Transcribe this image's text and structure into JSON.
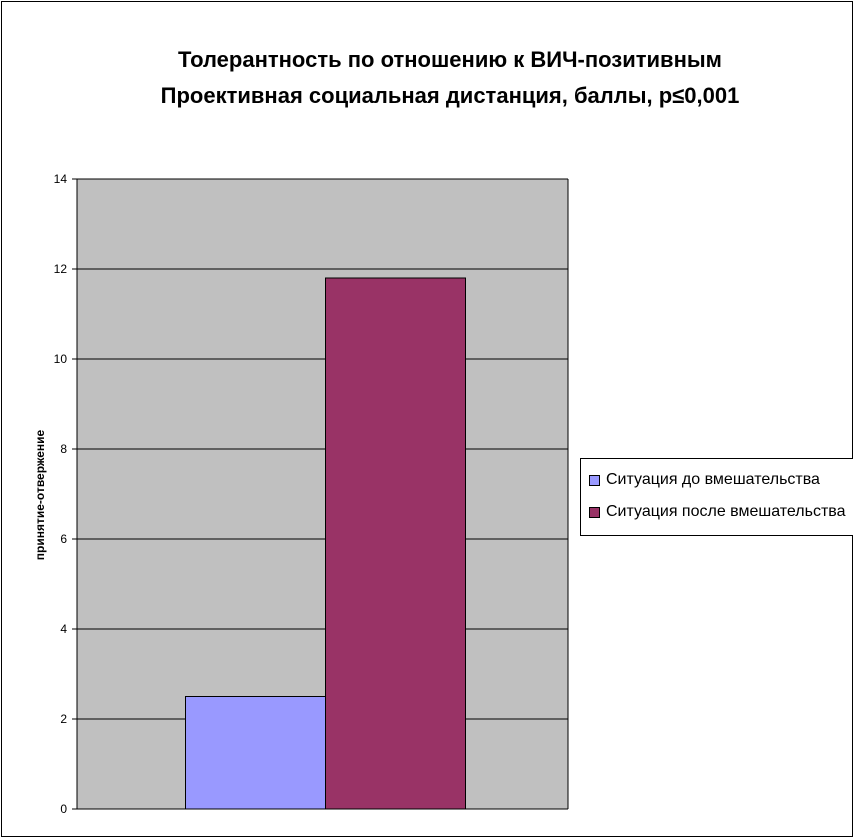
{
  "chart_data": {
    "type": "bar",
    "title": "Толерантность по отношению к ВИЧ-позитивным",
    "subtitle": "Проективная социальная дистанция, баллы, p≤0,001",
    "xlabel": "",
    "ylabel": "принятие-отвержение",
    "ylim": [
      0,
      14
    ],
    "yticks": [
      "0",
      "2",
      "4",
      "6",
      "8",
      "10",
      "12",
      "14"
    ],
    "grid": true,
    "legend_position": "right",
    "categories": [
      ""
    ],
    "series": [
      {
        "name": "Ситуация до вмешательства",
        "values": [
          2.5
        ],
        "color": "#9999ff"
      },
      {
        "name": "Ситуация после вмешательства",
        "values": [
          11.8
        ],
        "color": "#993366"
      }
    ],
    "plot_background": "#c0c0c0"
  }
}
